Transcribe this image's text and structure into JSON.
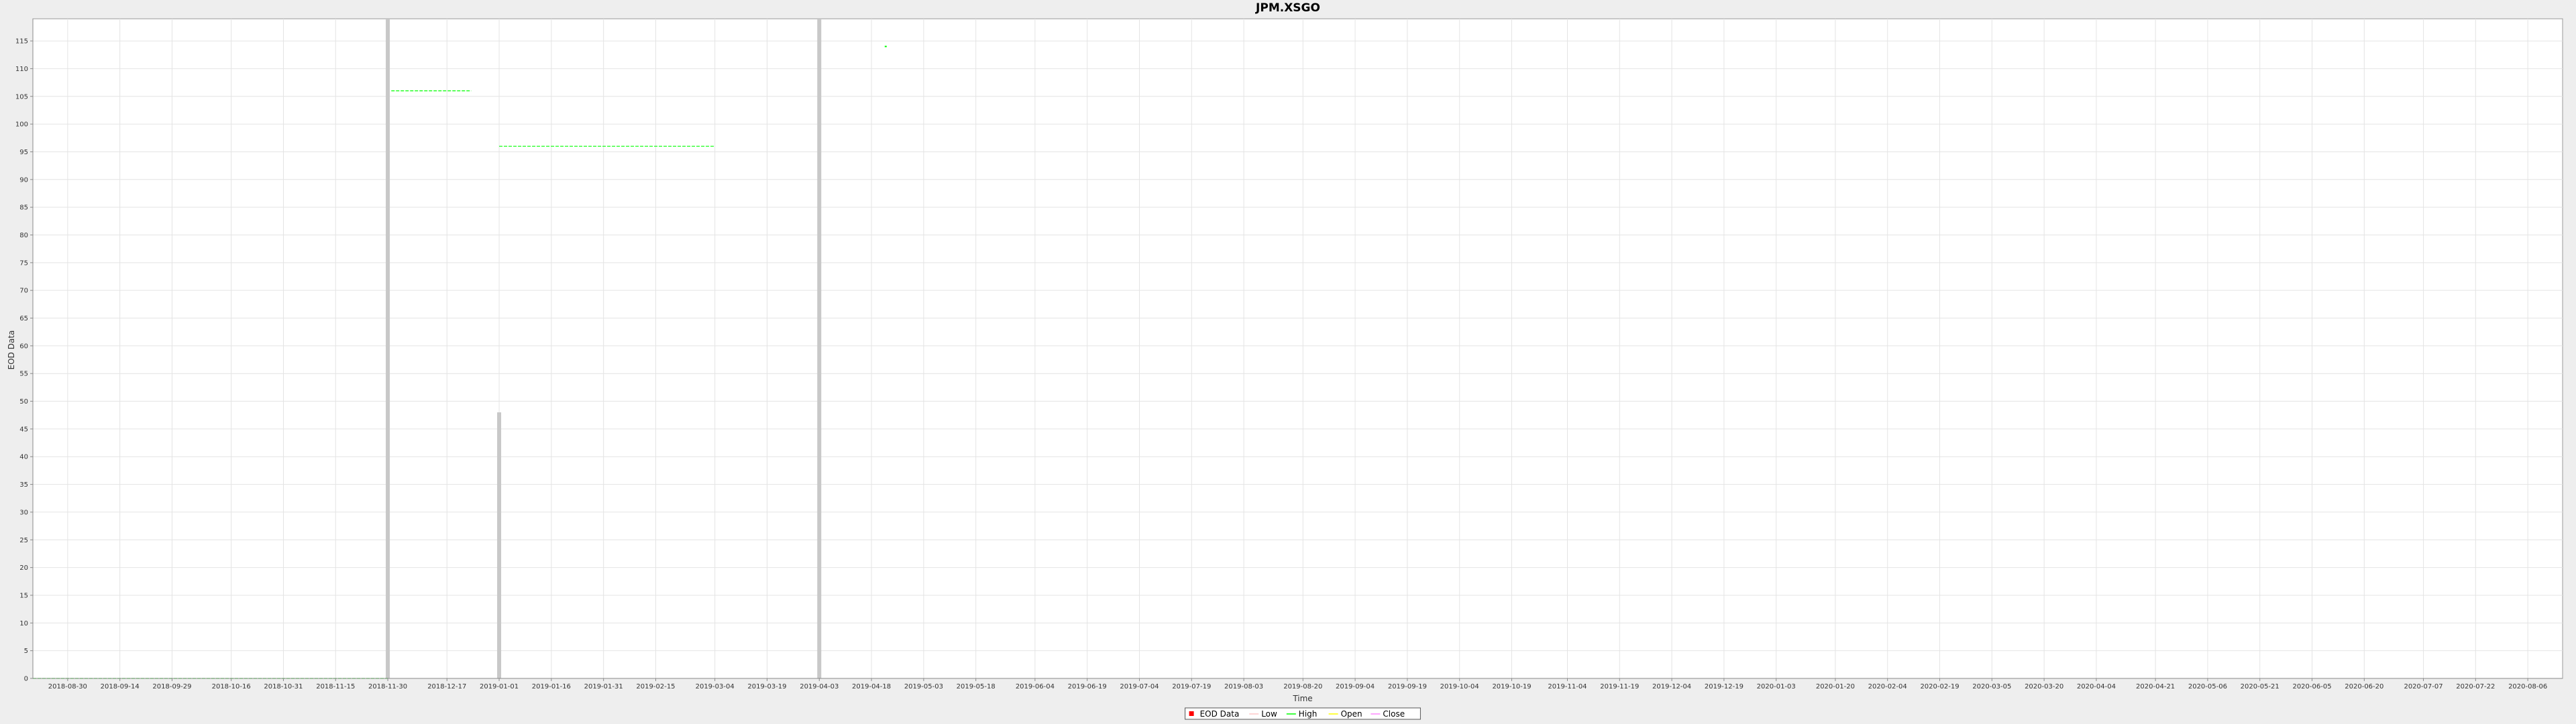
{
  "chart_data": {
    "type": "line",
    "title": "JPM.XSGO",
    "xlabel": "Time",
    "ylabel": "EOD Data",
    "ylim": [
      0,
      119
    ],
    "yticks": [
      0,
      5,
      10,
      15,
      20,
      25,
      30,
      35,
      40,
      45,
      50,
      55,
      60,
      65,
      70,
      75,
      80,
      85,
      90,
      95,
      100,
      105,
      110,
      115
    ],
    "xlim": [
      "2018-08-20",
      "2020-08-16"
    ],
    "xticks": [
      "2018-08-30",
      "2018-09-14",
      "2018-09-29",
      "2018-10-16",
      "2018-10-31",
      "2018-11-15",
      "2018-11-30",
      "2018-12-17",
      "2019-01-01",
      "2019-01-16",
      "2019-01-31",
      "2019-02-15",
      "2019-03-04",
      "2019-03-19",
      "2019-04-03",
      "2019-04-18",
      "2019-05-03",
      "2019-05-18",
      "2019-06-04",
      "2019-06-19",
      "2019-07-04",
      "2019-07-19",
      "2019-08-03",
      "2019-08-20",
      "2019-09-04",
      "2019-09-19",
      "2019-10-04",
      "2019-10-19",
      "2019-11-04",
      "2019-11-19",
      "2019-12-04",
      "2019-12-19",
      "2020-01-03",
      "2020-01-20",
      "2020-02-04",
      "2020-02-19",
      "2020-03-05",
      "2020-03-20",
      "2020-04-04",
      "2020-04-21",
      "2020-05-06",
      "2020-05-21",
      "2020-06-05",
      "2020-06-20",
      "2020-07-07",
      "2020-07-22",
      "2020-08-06"
    ],
    "grid": true,
    "legend_position": "bottom-center",
    "legend": [
      {
        "name": "EOD Data",
        "color": "#ff0000",
        "marker": "square"
      },
      {
        "name": "Low",
        "color": "#ffc8c8"
      },
      {
        "name": "High",
        "color": "#00ff00"
      },
      {
        "name": "Open",
        "color": "#ffff00"
      },
      {
        "name": "Close",
        "color": "#ff88ff"
      }
    ],
    "series": [
      {
        "name": "High",
        "color": "#00ff00",
        "segments": [
          {
            "x": [
              "2018-08-20",
              "2018-11-30"
            ],
            "y": 0
          },
          {
            "x": [
              "2018-12-01",
              "2018-12-24"
            ],
            "y": 106
          },
          {
            "x": [
              "2019-01-01",
              "2019-03-04"
            ],
            "y": 96
          },
          {
            "x": [
              "2019-04-22",
              "2019-04-22"
            ],
            "y": 114
          }
        ]
      }
    ],
    "volume_bars": [
      {
        "x": "2018-11-30",
        "y": 119
      },
      {
        "x": "2019-01-01",
        "y": 48
      },
      {
        "x": "2019-04-03",
        "y": 119
      }
    ],
    "bar_color": "#c8c8c8"
  }
}
